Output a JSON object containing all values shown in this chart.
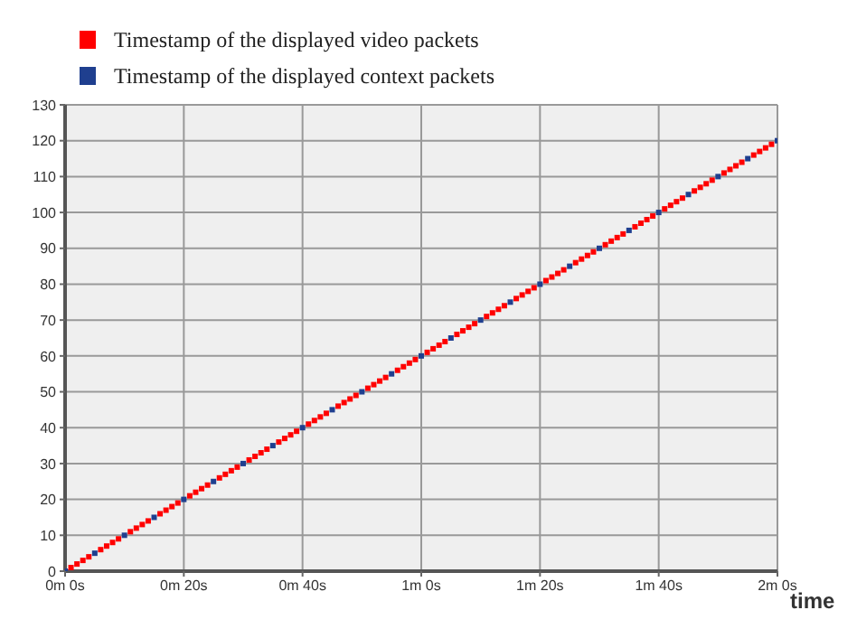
{
  "chart_data": {
    "type": "scatter",
    "xlabel": "time",
    "categories": [
      "0m 0s",
      null,
      null,
      null,
      null,
      null,
      null,
      null,
      null,
      null,
      null,
      null,
      null,
      null,
      null,
      null,
      null,
      null,
      null,
      null,
      "0m 20s",
      null,
      null,
      null,
      null,
      null,
      null,
      null,
      null,
      null,
      null,
      null,
      null,
      null,
      null,
      null,
      null,
      null,
      null,
      null,
      "0m 40s",
      null,
      null,
      null,
      null,
      null,
      null,
      null,
      null,
      null,
      null,
      null,
      null,
      null,
      null,
      null,
      null,
      null,
      null,
      null,
      "1m 0s",
      null,
      null,
      null,
      null,
      null,
      null,
      null,
      null,
      null,
      null,
      null,
      null,
      null,
      null,
      null,
      null,
      null,
      null,
      null,
      "1m 20s",
      null,
      null,
      null,
      null,
      null,
      null,
      null,
      null,
      null,
      null,
      null,
      null,
      null,
      null,
      null,
      null,
      null,
      null,
      null,
      "1m 40s",
      null,
      null,
      null,
      null,
      null,
      null,
      null,
      null,
      null,
      null,
      null,
      null,
      null,
      null,
      null,
      null,
      null,
      null,
      null,
      "2m 0s"
    ],
    "ylim": [
      0,
      130
    ],
    "yticks": [
      0,
      10,
      20,
      30,
      40,
      50,
      60,
      70,
      80,
      90,
      100,
      110,
      120,
      130
    ],
    "grid": true,
    "legend": "top left",
    "marker": "square",
    "series": [
      {
        "name": "Timestamp of the displayed video packets",
        "color": "#ff0000",
        "values": [
          null,
          1,
          2,
          3,
          4,
          null,
          6,
          7,
          8,
          9,
          null,
          11,
          12,
          13,
          14,
          null,
          16,
          17,
          18,
          19,
          null,
          21,
          22,
          23,
          24,
          null,
          26,
          27,
          28,
          29,
          null,
          31,
          32,
          33,
          34,
          null,
          36,
          37,
          38,
          39,
          null,
          41,
          42,
          43,
          44,
          null,
          46,
          47,
          48,
          49,
          null,
          51,
          52,
          53,
          54,
          null,
          56,
          57,
          58,
          59,
          null,
          61,
          62,
          63,
          64,
          null,
          66,
          67,
          68,
          69,
          null,
          71,
          72,
          73,
          74,
          null,
          76,
          77,
          78,
          79,
          null,
          81,
          82,
          83,
          84,
          null,
          86,
          87,
          88,
          89,
          null,
          91,
          92,
          93,
          94,
          null,
          96,
          97,
          98,
          99,
          null,
          101,
          102,
          103,
          104,
          null,
          106,
          107,
          108,
          109,
          null,
          111,
          112,
          113,
          114,
          null,
          116,
          117,
          118,
          119,
          null
        ]
      },
      {
        "name": "Timestamp of the displayed context packets",
        "color": "#1f3f8f",
        "values": [
          0,
          null,
          null,
          null,
          null,
          5,
          null,
          null,
          null,
          null,
          10,
          null,
          null,
          null,
          null,
          15,
          null,
          null,
          null,
          null,
          20,
          null,
          null,
          null,
          null,
          25,
          null,
          null,
          null,
          null,
          30,
          null,
          null,
          null,
          null,
          35,
          null,
          null,
          null,
          null,
          40,
          null,
          null,
          null,
          null,
          45,
          null,
          null,
          null,
          null,
          50,
          null,
          null,
          null,
          null,
          55,
          null,
          null,
          null,
          null,
          60,
          null,
          null,
          null,
          null,
          65,
          null,
          null,
          null,
          null,
          70,
          null,
          null,
          null,
          null,
          75,
          null,
          null,
          null,
          null,
          80,
          null,
          null,
          null,
          null,
          85,
          null,
          null,
          null,
          null,
          90,
          null,
          null,
          null,
          null,
          95,
          null,
          null,
          null,
          null,
          100,
          null,
          null,
          null,
          null,
          105,
          null,
          null,
          null,
          null,
          110,
          null,
          null,
          null,
          null,
          115,
          null,
          null,
          null,
          null,
          120
        ]
      }
    ]
  }
}
